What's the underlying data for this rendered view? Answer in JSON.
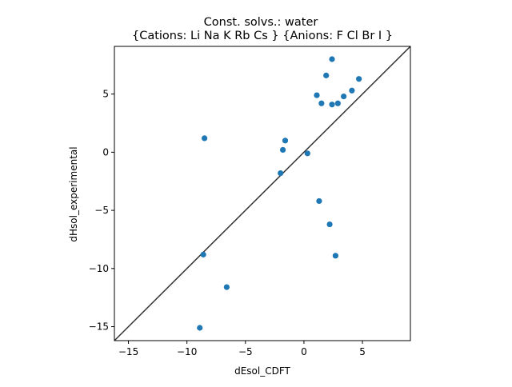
{
  "chart_data": {
    "type": "scatter",
    "title_line1": "Const. solvs.: water",
    "title_line2": "{Cations: Li Na K Rb Cs } {Anions: F Cl Br I }",
    "xlabel": "dEsol_CDFT",
    "ylabel": "dHsol_experimental",
    "xlim": [
      -16.2,
      9.1
    ],
    "ylim": [
      -16.2,
      9.1
    ],
    "xticks": [
      -15,
      -10,
      -5,
      0,
      5
    ],
    "yticks": [
      -15,
      -10,
      -5,
      0,
      5
    ],
    "xtick_labels": [
      "−15",
      "−10",
      "−5",
      "0",
      "5"
    ],
    "ytick_labels": [
      "−15",
      "−10",
      "−5",
      "0",
      "5"
    ],
    "grid": false,
    "reference_line": "y = x",
    "series": [
      {
        "x": [
          -8.9,
          -8.5,
          -8.6,
          -6.6,
          -2.0,
          -1.8,
          -1.6,
          0.3,
          1.1,
          1.3,
          1.5,
          1.9,
          2.2,
          2.4,
          2.4,
          2.7,
          2.9,
          3.4,
          4.1,
          4.7
        ],
        "y": [
          -15.1,
          1.2,
          -8.8,
          -11.6,
          -1.8,
          0.2,
          1.0,
          -0.1,
          4.9,
          -4.2,
          4.2,
          6.6,
          -6.2,
          4.1,
          8.0,
          -8.9,
          4.2,
          4.8,
          5.3,
          6.3
        ]
      }
    ],
    "colors": {
      "marker": "#1f77b4",
      "reference_line": "#333333",
      "axes": "#000000"
    }
  }
}
